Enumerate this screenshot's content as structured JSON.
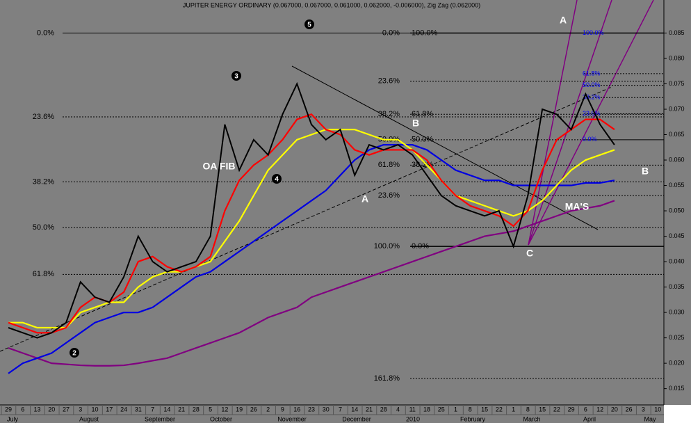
{
  "chart_data": {
    "type": "line",
    "title": "JUPITER ENERGY ORDINARY (0.067000, 0.067000, 0.061000, 0.062000, -0.006000), Zig Zag (0.062000)",
    "categories": [
      "29",
      "6",
      "13",
      "20",
      "27",
      "3",
      "10",
      "17",
      "24",
      "31",
      "7",
      "14",
      "21",
      "28",
      "5",
      "12",
      "19",
      "26",
      "2",
      "9",
      "16",
      "23",
      "30",
      "7",
      "14",
      "21",
      "28",
      "4",
      "11",
      "18",
      "25",
      "1",
      "8",
      "15",
      "22",
      "1",
      "8",
      "15",
      "22",
      "29",
      "6",
      "12",
      "20",
      "26",
      "3",
      "10"
    ],
    "months": [
      "July",
      "August",
      "September",
      "October",
      "November",
      "December",
      "2010",
      "February",
      "March",
      "April",
      "May"
    ],
    "series": [
      {
        "color": "#800080",
        "values": [
          0.023,
          0.022,
          0.021,
          0.02,
          0.0198,
          0.0196,
          0.0195,
          0.0195,
          0.0196,
          0.02,
          0.0205,
          0.021,
          0.022,
          0.023,
          0.024,
          0.025,
          0.026,
          0.0275,
          0.029,
          0.03,
          0.031,
          0.033,
          0.034,
          0.035,
          0.036,
          0.037,
          0.038,
          0.039,
          0.04,
          0.041,
          0.042,
          0.043,
          0.044,
          0.045,
          0.0455,
          0.046,
          0.047,
          0.048,
          0.049,
          0.05,
          0.0505,
          0.051,
          0.052,
          null,
          null,
          null
        ]
      },
      {
        "color": "#0000e0",
        "values": [
          0.018,
          0.02,
          0.021,
          0.022,
          0.024,
          0.026,
          0.028,
          0.029,
          0.03,
          0.03,
          0.031,
          0.033,
          0.035,
          0.037,
          0.038,
          0.04,
          0.042,
          0.044,
          0.046,
          0.048,
          0.05,
          0.052,
          0.054,
          0.057,
          0.06,
          0.062,
          0.063,
          0.063,
          0.063,
          0.062,
          0.06,
          0.058,
          0.057,
          0.056,
          0.056,
          0.055,
          0.055,
          0.055,
          0.055,
          0.055,
          0.0555,
          0.0555,
          0.056,
          null,
          null,
          null
        ]
      },
      {
        "color": "#ffff00",
        "values": [
          0.028,
          0.028,
          0.027,
          0.027,
          0.027,
          0.03,
          0.031,
          0.032,
          0.032,
          0.035,
          0.037,
          0.038,
          0.038,
          0.039,
          0.04,
          0.044,
          0.048,
          0.053,
          0.058,
          0.061,
          0.064,
          0.065,
          0.066,
          0.066,
          0.066,
          0.065,
          0.064,
          0.064,
          0.062,
          0.059,
          0.056,
          0.053,
          0.052,
          0.051,
          0.05,
          0.049,
          0.05,
          0.052,
          0.055,
          0.058,
          0.06,
          0.061,
          0.062,
          null,
          null,
          null
        ]
      },
      {
        "color": "#ff0000",
        "values": [
          0.028,
          0.027,
          0.026,
          0.026,
          0.027,
          0.031,
          0.033,
          0.032,
          0.034,
          0.04,
          0.041,
          0.039,
          0.038,
          0.039,
          0.041,
          0.05,
          0.056,
          0.059,
          0.061,
          0.064,
          0.068,
          0.069,
          0.066,
          0.065,
          0.062,
          0.061,
          0.062,
          0.062,
          0.062,
          0.06,
          0.056,
          0.053,
          0.051,
          0.05,
          0.049,
          0.047,
          0.05,
          0.058,
          0.064,
          0.066,
          0.068,
          0.068,
          0.066,
          null,
          null,
          null
        ]
      },
      {
        "color": "#000000",
        "values": [
          0.027,
          0.026,
          0.025,
          0.026,
          0.028,
          0.036,
          0.033,
          0.032,
          0.037,
          0.045,
          0.04,
          0.038,
          0.039,
          0.04,
          0.045,
          0.067,
          0.058,
          0.064,
          0.061,
          0.069,
          0.075,
          0.067,
          0.064,
          0.066,
          0.057,
          0.063,
          0.062,
          0.063,
          0.061,
          0.057,
          0.053,
          0.051,
          0.05,
          0.049,
          0.05,
          0.043,
          0.053,
          0.07,
          0.069,
          0.066,
          0.073,
          0.067,
          0.063,
          null,
          null,
          null
        ]
      }
    ],
    "ylim": [
      0.0118,
      0.0915
    ],
    "yticks": [
      {
        "value": 0.015,
        "label": "0.015"
      },
      {
        "value": 0.02,
        "label": "0.020"
      },
      {
        "value": 0.025,
        "label": "0.025"
      },
      {
        "value": 0.03,
        "label": "0.030"
      },
      {
        "value": 0.035,
        "label": "0.035"
      },
      {
        "value": 0.04,
        "label": "0.040"
      },
      {
        "value": 0.045,
        "label": "0.045"
      },
      {
        "value": 0.05,
        "label": "0.050"
      },
      {
        "value": 0.055,
        "label": "0.055"
      },
      {
        "value": 0.06,
        "label": "0.060"
      },
      {
        "value": 0.065,
        "label": "0.065"
      },
      {
        "value": 0.07,
        "label": "0.070"
      },
      {
        "value": 0.075,
        "label": "0.075"
      },
      {
        "value": 0.08,
        "label": "0.080"
      },
      {
        "value": 0.085,
        "label": "0.085"
      }
    ],
    "fib_left": [
      {
        "label": "0.0%",
        "value": 0.085
      },
      {
        "label": "23.6%",
        "value": 0.0685
      },
      {
        "label": "38.2%",
        "value": 0.0557
      },
      {
        "label": "50.0%",
        "value": 0.0467
      },
      {
        "label": "61.8%",
        "value": 0.0375
      }
    ],
    "fib_mid": [
      {
        "left": "0.0%",
        "right": "100.0%",
        "value": 0.085
      },
      {
        "left": "23.6%",
        "value": 0.0755
      },
      {
        "left": "38.2%",
        "right": "61.8%",
        "value": 0.069
      },
      {
        "left": "50.0%",
        "right": "50.0%",
        "value": 0.064
      },
      {
        "left": "61.8%",
        "right": "38.2%",
        "value": 0.059
      },
      {
        "left": "23.6%",
        "value": 0.053
      },
      {
        "left": "100.0%",
        "right": "0.0%",
        "value": 0.043
      },
      {
        "left": "161.8%",
        "value": 0.017
      }
    ],
    "fib_right": [
      {
        "label": "100.0%",
        "value": 0.085
      },
      {
        "label": "61.8%",
        "value": 0.077
      },
      {
        "label": "50.0%",
        "value": 0.0747
      },
      {
        "label": "38.2%",
        "value": 0.0723
      },
      {
        "label": "23.6%",
        "value": 0.0691
      },
      {
        "label": "0.0%",
        "value": 0.064
      }
    ],
    "annotations": [
      "A",
      "A",
      "B",
      "C",
      "B",
      "MA'S",
      "OA FIB",
      "2",
      "3",
      "4",
      "5"
    ]
  }
}
